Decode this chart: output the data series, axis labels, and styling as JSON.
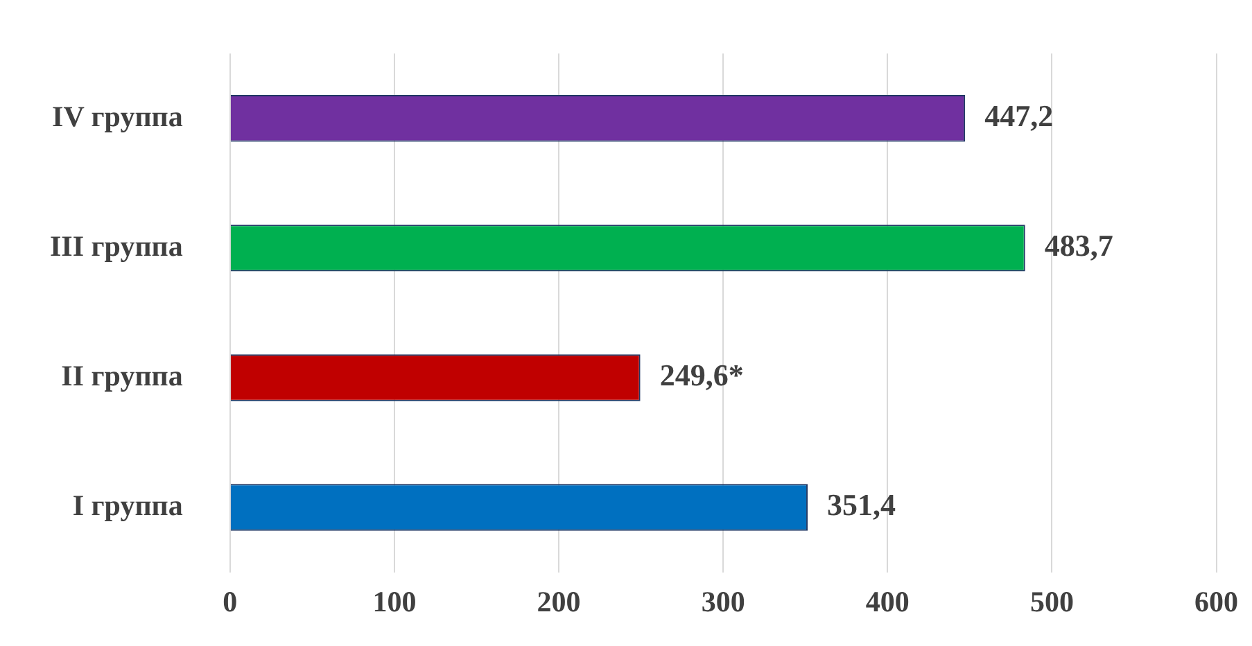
{
  "chart_data": {
    "type": "bar",
    "orientation": "horizontal",
    "categories": [
      "IV группа",
      "III группа",
      "II группа",
      "I группа"
    ],
    "values": [
      447.2,
      483.7,
      249.6,
      351.4
    ],
    "colors": [
      "#7030a0",
      "#00b050",
      "#c00000",
      "#0070c0"
    ],
    "value_labels": [
      "447,2",
      "483,7",
      "249,6*",
      "351,4"
    ],
    "xlim": [
      0,
      600
    ],
    "xticks": [
      0,
      100,
      200,
      300,
      400,
      500,
      600
    ],
    "grid": "x",
    "legend": false
  }
}
